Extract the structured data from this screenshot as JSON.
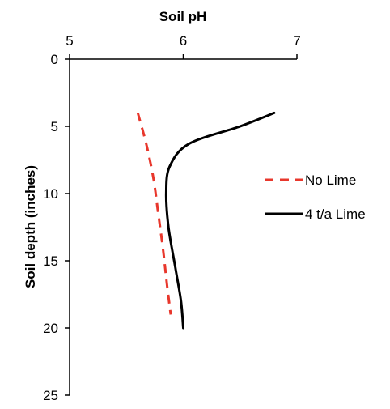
{
  "chart_data": {
    "type": "line",
    "title": "",
    "xlabel": "Soil pH",
    "ylabel": "Soil depth (inches)",
    "xlim": [
      5,
      7
    ],
    "ylim": [
      0,
      25
    ],
    "x_ticks": [
      "5",
      "6",
      "7"
    ],
    "y_ticks": [
      "0",
      "5",
      "10",
      "15",
      "20",
      "25"
    ],
    "x_axis_position": "top",
    "y_axis_inverted": true,
    "grid": false,
    "legend_position": "right",
    "series": [
      {
        "name": "No Lime",
        "color": "#e8372c",
        "line_style": "dashed",
        "points": [
          {
            "pH": 5.6,
            "depth": 4
          },
          {
            "pH": 5.68,
            "depth": 6.5
          },
          {
            "pH": 5.74,
            "depth": 9
          },
          {
            "pH": 5.78,
            "depth": 11.5
          },
          {
            "pH": 5.82,
            "depth": 14
          },
          {
            "pH": 5.86,
            "depth": 17
          },
          {
            "pH": 5.89,
            "depth": 19
          }
        ]
      },
      {
        "name": "4 t/a Lime",
        "color": "#000000",
        "line_style": "solid",
        "points": [
          {
            "pH": 6.8,
            "depth": 4
          },
          {
            "pH": 6.5,
            "depth": 5
          },
          {
            "pH": 6.05,
            "depth": 6.3
          },
          {
            "pH": 5.88,
            "depth": 8
          },
          {
            "pH": 5.85,
            "depth": 10
          },
          {
            "pH": 5.87,
            "depth": 12.5
          },
          {
            "pH": 5.93,
            "depth": 15.5
          },
          {
            "pH": 5.98,
            "depth": 18
          },
          {
            "pH": 6.0,
            "depth": 20
          }
        ]
      }
    ]
  }
}
